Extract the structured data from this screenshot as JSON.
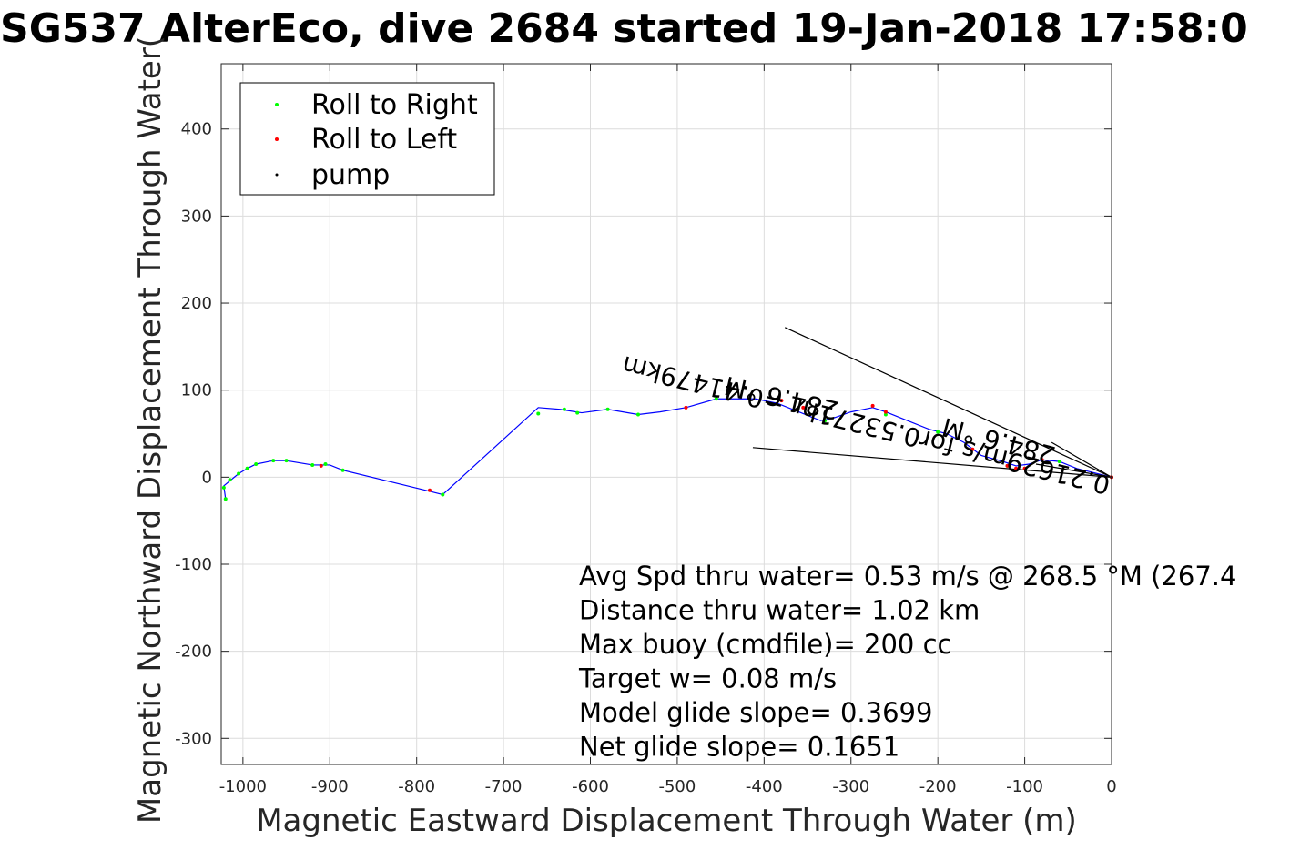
{
  "chart_data": {
    "type": "line",
    "title": "SG537 AlterEco, dive 2684 started 19-Jan-2018 17:58:0",
    "xlabel": "Magnetic Eastward Displacement Through Water (m)",
    "ylabel": "Magnetic Northward Displacement Through Water(",
    "xlim": [
      -1025,
      0
    ],
    "ylim": [
      -330,
      475
    ],
    "xticks": [
      "-1000",
      "-900",
      "-800",
      "-700",
      "-600",
      "-500",
      "-400",
      "-300",
      "-200",
      "-100",
      "0"
    ],
    "xtick_values": [
      -1000,
      -900,
      -800,
      -700,
      -600,
      -500,
      -400,
      -300,
      -200,
      -100,
      0
    ],
    "yticks": [
      "400",
      "300",
      "200",
      "100",
      "0",
      "-100",
      "-200",
      "-300"
    ],
    "ytick_values": [
      400,
      300,
      200,
      100,
      0,
      -100,
      -200,
      -300
    ],
    "grid": true,
    "legend_position": "top-left",
    "track": {
      "color": "#0000ff",
      "x": [
        0,
        -20,
        -40,
        -60,
        -80,
        -95,
        -110,
        -125,
        -150,
        -170,
        -190,
        -210,
        -235,
        -260,
        -275,
        -300,
        -320,
        -335,
        -360,
        -385,
        -410,
        -455,
        -490,
        -520,
        -545,
        -580,
        -610,
        -635,
        -660,
        -770,
        -790,
        -885,
        -900,
        -920,
        -950,
        -965,
        -985,
        -995,
        -1005,
        -1010,
        -1022,
        -1020
      ],
      "y": [
        0,
        5,
        10,
        18,
        20,
        15,
        13,
        18,
        25,
        40,
        50,
        55,
        65,
        75,
        80,
        75,
        68,
        65,
        75,
        85,
        90,
        90,
        80,
        75,
        72,
        78,
        74,
        78,
        80,
        -20,
        -15,
        8,
        14,
        14,
        19,
        19,
        15,
        10,
        4,
        0,
        -10,
        -25
      ]
    },
    "series": [
      {
        "name": "Roll to Right",
        "color": "#00ff00",
        "x": [
          -60,
          -120,
          -200,
          -260,
          -330,
          -455,
          -545,
          -580,
          -615,
          -630,
          -660,
          -770,
          -885,
          -905,
          -920,
          -950,
          -965,
          -985,
          -995,
          -1005,
          -1015,
          -1020,
          -1022
        ],
        "y": [
          18,
          13,
          52,
          72,
          65,
          90,
          72,
          78,
          74,
          78,
          73,
          -20,
          8,
          15,
          14,
          19,
          19,
          15,
          10,
          4,
          -3,
          -25,
          -12
        ]
      },
      {
        "name": "Roll to Left",
        "color": "#ff0000",
        "x": [
          0,
          -80,
          -100,
          -110,
          -120,
          -160,
          -260,
          -275,
          -355,
          -380,
          -490,
          -785,
          -910
        ],
        "y": [
          0,
          20,
          10,
          10,
          13,
          32,
          75,
          82,
          80,
          88,
          80,
          -15,
          13
        ]
      },
      {
        "name": "pump",
        "color": "#000000",
        "x": [
          0
        ],
        "y": [
          0
        ]
      }
    ],
    "lines": [
      {
        "color": "#000000",
        "x": [
          0,
          -376
        ],
        "y": [
          0,
          172
        ]
      },
      {
        "color": "#000000",
        "x": [
          0,
          -413
        ],
        "y": [
          0,
          34
        ]
      },
      {
        "color": "#000000",
        "x": [
          0,
          -69
        ],
        "y": [
          0,
          40
        ]
      },
      {
        "color": "#000000",
        "x": [
          0,
          -87
        ],
        "y": [
          0,
          15
        ]
      }
    ],
    "rotated_annotations": [
      {
        "text": "0.21629m/s for0.53271hr =0.41479km",
        "anchor_x": 0,
        "anchor_y": 0,
        "angle_deg": 194
      },
      {
        "text": "284.6 °M",
        "anchor_x": -63,
        "anchor_y": 34,
        "angle_deg": 195
      },
      {
        "text": "284.6 °M",
        "anchor_x": -313,
        "anchor_y": 86,
        "angle_deg": 193
      }
    ],
    "annotations": [
      "Avg Spd thru water=  0.53 m/s @ 268.5 °M (267.4",
      "Distance thru water=  1.02 km",
      "Max buoy (cmdfile)= 200 cc",
      "Target w= 0.08 m/s",
      "Model glide slope= 0.3699",
      "Net glide slope= 0.1651"
    ]
  }
}
